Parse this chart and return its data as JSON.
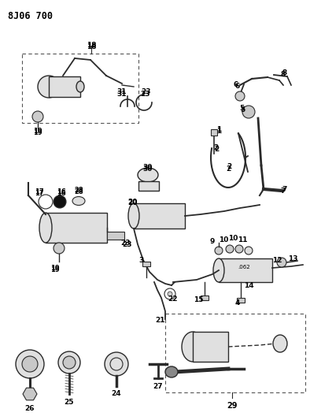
{
  "title": "8J06 700",
  "bg_color": "#ffffff",
  "line_color": "#2a2a2a",
  "text_color": "#000000",
  "figsize": [
    3.94,
    5.33
  ],
  "dpi": 100
}
